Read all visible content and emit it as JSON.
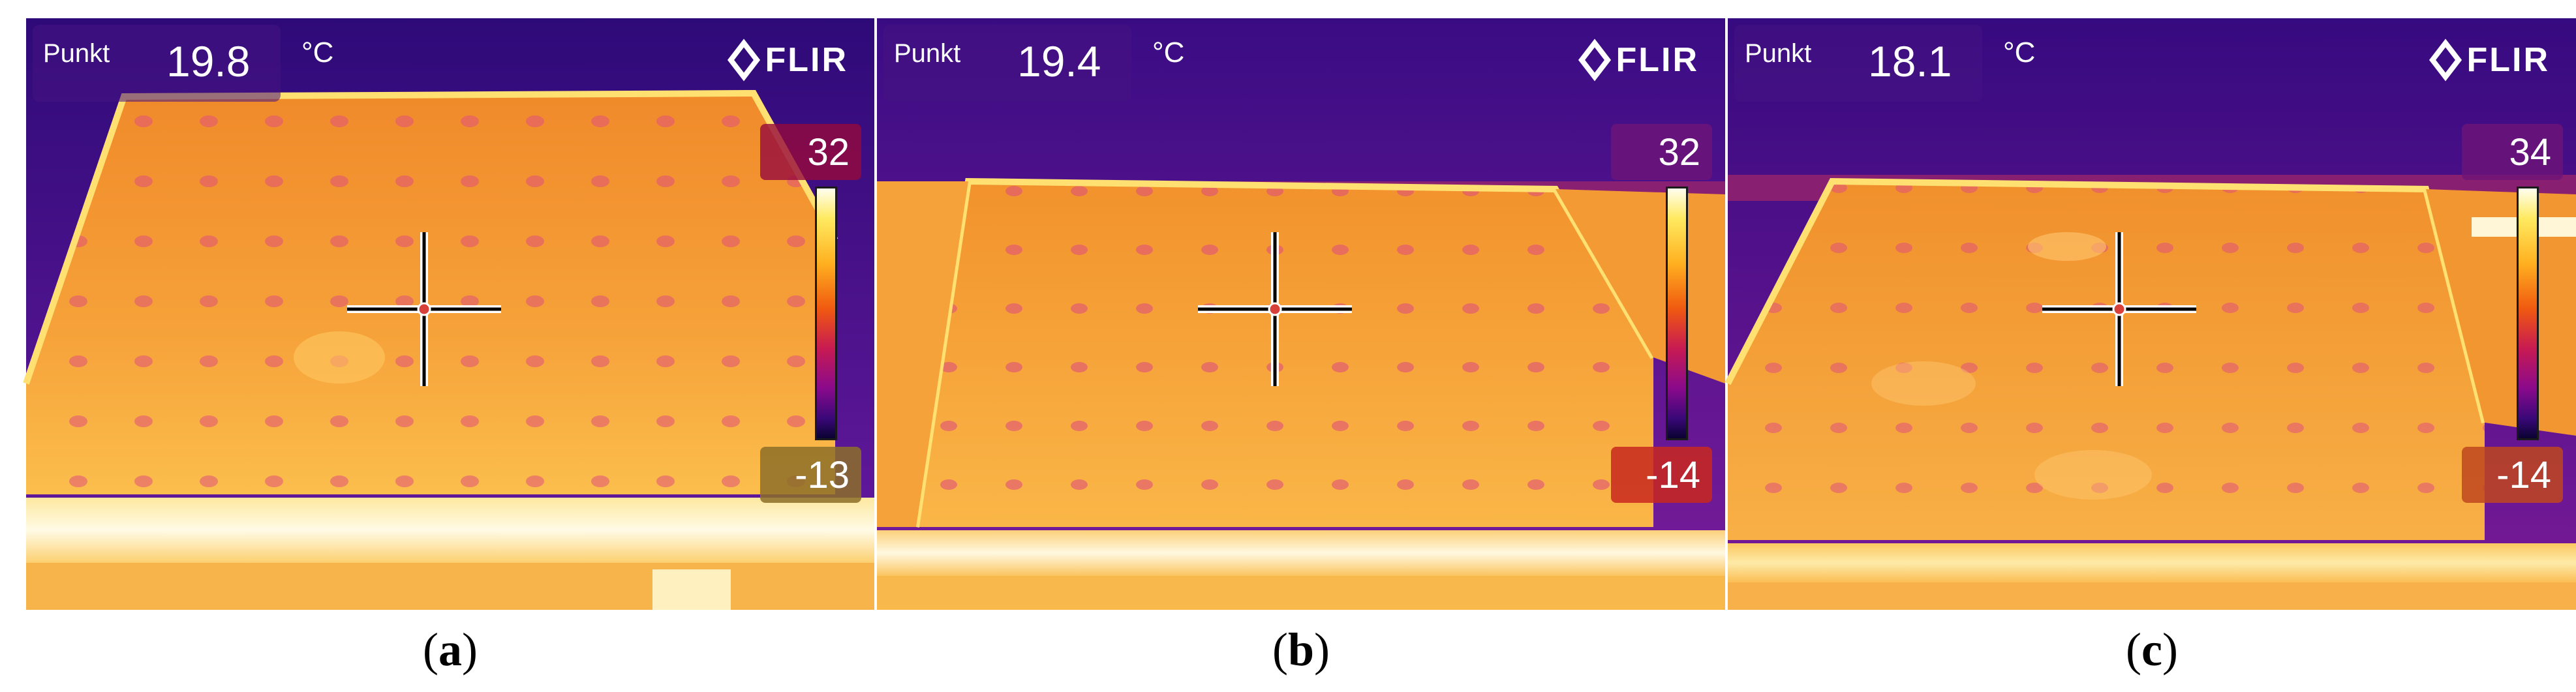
{
  "panels": [
    {
      "id": "a",
      "readout": {
        "label": "Punkt",
        "value": "19.8",
        "unit": "°C"
      },
      "brand": "FLIR",
      "scale": {
        "max": "32",
        "min": "-13"
      },
      "caption": {
        "open": "(",
        "letter": "a",
        "close": ")"
      }
    },
    {
      "id": "b",
      "readout": {
        "label": "Punkt",
        "value": "19.4",
        "unit": "°C"
      },
      "brand": "FLIR",
      "scale": {
        "max": "32",
        "min": "-14"
      },
      "caption": {
        "open": "(",
        "letter": "b",
        "close": ")"
      }
    },
    {
      "id": "c",
      "readout": {
        "label": "Punkt",
        "value": "18.1",
        "unit": "°C"
      },
      "brand": "FLIR",
      "scale": {
        "max": "34",
        "min": "-14"
      },
      "caption": {
        "open": "(",
        "letter": "c",
        "close": ")"
      }
    }
  ],
  "colors": {
    "sky": "#4a1090",
    "panel_surface": "#f59a28",
    "hot_spot": "#e8487a",
    "bright_edge": "#fff2b0",
    "caption_text": "#000000"
  },
  "icons": {
    "logo": "flir-diamond-icon",
    "crosshair": "crosshair-icon"
  }
}
